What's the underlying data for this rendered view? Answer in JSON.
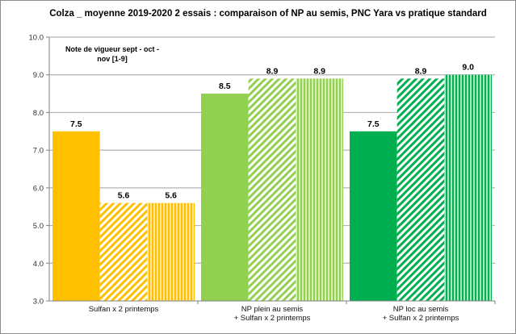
{
  "chart_data": {
    "type": "bar",
    "title": "Colza _ moyenne  2019-2020  2 essais  :   comparaison  of NP au semis, PNC Yara  vs pratique standard",
    "annotation": [
      "Note de vigueur  sept - oct -",
      "nov  [1-9]"
    ],
    "xlabel": "",
    "ylabel": "",
    "ylim": [
      3.0,
      10.0
    ],
    "yticks": [
      "3.0",
      "4.0",
      "5.0",
      "6.0",
      "7.0",
      "8.0",
      "9.0",
      "10.0"
    ],
    "grid": true,
    "categories": [
      [
        "Sulfan x 2  printemps"
      ],
      [
        "NP plein au semis",
        "+ Sulfan x 2 printemps"
      ],
      [
        "NP loc au semis",
        "+  Sulfan x 2  printemps"
      ]
    ],
    "series": [
      {
        "name": "series-1",
        "pattern": "solid",
        "values": [
          7.5,
          8.5,
          7.5
        ],
        "labels": [
          "7.5",
          "8.5",
          "7.5"
        ]
      },
      {
        "name": "series-2",
        "pattern": "diagonal",
        "values": [
          5.6,
          8.9,
          8.9
        ],
        "labels": [
          "5.6",
          "8.9",
          "8.9"
        ]
      },
      {
        "name": "series-3",
        "pattern": "vertical",
        "values": [
          5.6,
          8.9,
          9.0
        ],
        "labels": [
          "5.6",
          "8.9",
          "9.0"
        ]
      }
    ],
    "group_colors": [
      "#ffc000",
      "#92d050",
      "#00b050"
    ],
    "group_light_colors": [
      "#ffe699",
      "#d4eeb4",
      "#a8e4c0"
    ]
  }
}
